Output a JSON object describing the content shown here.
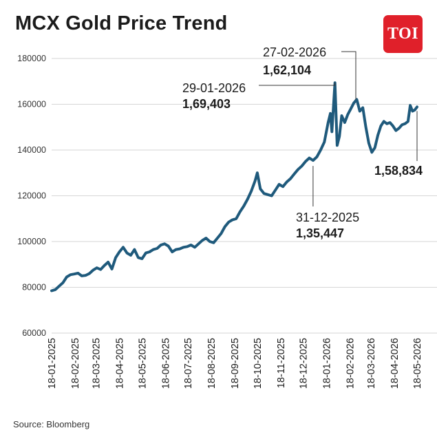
{
  "title": "MCX Gold Price Trend",
  "logo_text": "TOI",
  "source": "Source: Bloomberg",
  "colors": {
    "line": "#1f5a7c",
    "grid": "#d6d6d6",
    "logo": "#e0202a",
    "text": "#1b1b1b"
  },
  "chart_data": {
    "type": "line",
    "title": "MCX Gold Price Trend",
    "xlabel": "",
    "ylabel": "",
    "ylim": [
      60000,
      180000
    ],
    "yticks": [
      180000,
      160000,
      140000,
      120000,
      100000,
      80000,
      60000
    ],
    "ytick_labels": [
      "180000",
      "160000",
      "140000",
      "120000",
      "100000",
      "80000",
      "60000"
    ],
    "xticks": [
      "18-01-2025",
      "18-02-2025",
      "18-03-2025",
      "18-04-2025",
      "18-05-2025",
      "18-06-2025",
      "18-07-2025",
      "18-08-2025",
      "18-09-2025",
      "18-10-2025",
      "18-11-2025",
      "18-12-2025",
      "18-01-2026",
      "18-02-2026",
      "18-03-2026",
      "18-04-2026",
      "18-05-2026"
    ],
    "grid": "horizontal",
    "series": [
      {
        "points": [
          [
            "2025-01-18",
            78500
          ],
          [
            "2025-01-23",
            79000
          ],
          [
            "2025-01-28",
            80500
          ],
          [
            "2025-02-02",
            82000
          ],
          [
            "2025-02-07",
            84500
          ],
          [
            "2025-02-12",
            85500
          ],
          [
            "2025-02-17",
            85800
          ],
          [
            "2025-02-22",
            86200
          ],
          [
            "2025-02-27",
            85000
          ],
          [
            "2025-03-04",
            85200
          ],
          [
            "2025-03-09",
            86000
          ],
          [
            "2025-03-14",
            87500
          ],
          [
            "2025-03-19",
            88500
          ],
          [
            "2025-03-24",
            87800
          ],
          [
            "2025-03-29",
            89500
          ],
          [
            "2025-04-03",
            91000
          ],
          [
            "2025-04-08",
            88000
          ],
          [
            "2025-04-13",
            93000
          ],
          [
            "2025-04-18",
            95500
          ],
          [
            "2025-04-23",
            97500
          ],
          [
            "2025-04-28",
            95000
          ],
          [
            "2025-05-03",
            94000
          ],
          [
            "2025-05-08",
            96500
          ],
          [
            "2025-05-13",
            93000
          ],
          [
            "2025-05-18",
            92500
          ],
          [
            "2025-05-23",
            95000
          ],
          [
            "2025-05-28",
            95500
          ],
          [
            "2025-06-02",
            96500
          ],
          [
            "2025-06-07",
            97000
          ],
          [
            "2025-06-12",
            98500
          ],
          [
            "2025-06-17",
            99000
          ],
          [
            "2025-06-22",
            98000
          ],
          [
            "2025-06-27",
            95500
          ],
          [
            "2025-07-02",
            96500
          ],
          [
            "2025-07-07",
            96800
          ],
          [
            "2025-07-12",
            97500
          ],
          [
            "2025-07-17",
            97800
          ],
          [
            "2025-07-22",
            98500
          ],
          [
            "2025-07-27",
            97500
          ],
          [
            "2025-08-01",
            99000
          ],
          [
            "2025-08-06",
            100500
          ],
          [
            "2025-08-11",
            101500
          ],
          [
            "2025-08-16",
            100000
          ],
          [
            "2025-08-21",
            99500
          ],
          [
            "2025-08-26",
            101500
          ],
          [
            "2025-08-31",
            103500
          ],
          [
            "2025-09-05",
            106500
          ],
          [
            "2025-09-10",
            108500
          ],
          [
            "2025-09-15",
            109500
          ],
          [
            "2025-09-20",
            110000
          ],
          [
            "2025-09-25",
            113000
          ],
          [
            "2025-09-30",
            115500
          ],
          [
            "2025-10-05",
            118500
          ],
          [
            "2025-10-10",
            122000
          ],
          [
            "2025-10-15",
            126500
          ],
          [
            "2025-10-18",
            130000
          ],
          [
            "2025-10-22",
            123000
          ],
          [
            "2025-10-27",
            121000
          ],
          [
            "2025-11-01",
            120500
          ],
          [
            "2025-11-06",
            120000
          ],
          [
            "2025-11-11",
            122500
          ],
          [
            "2025-11-16",
            125000
          ],
          [
            "2025-11-21",
            124000
          ],
          [
            "2025-11-26",
            126000
          ],
          [
            "2025-12-01",
            127500
          ],
          [
            "2025-12-06",
            129500
          ],
          [
            "2025-12-11",
            131500
          ],
          [
            "2025-12-16",
            133000
          ],
          [
            "2025-12-21",
            135000
          ],
          [
            "2025-12-26",
            136500
          ],
          [
            "2025-12-31",
            135447
          ],
          [
            "2026-01-05",
            137000
          ],
          [
            "2026-01-10",
            140000
          ],
          [
            "2026-01-15",
            143500
          ],
          [
            "2026-01-20",
            152000
          ],
          [
            "2026-01-23",
            156000
          ],
          [
            "2026-01-25",
            148000
          ],
          [
            "2026-01-29",
            169403
          ],
          [
            "2026-02-01",
            142000
          ],
          [
            "2026-02-04",
            146000
          ],
          [
            "2026-02-07",
            155000
          ],
          [
            "2026-02-11",
            152000
          ],
          [
            "2026-02-15",
            155500
          ],
          [
            "2026-02-19",
            158000
          ],
          [
            "2026-02-23",
            160500
          ],
          [
            "2026-02-27",
            162104
          ],
          [
            "2026-03-03",
            157000
          ],
          [
            "2026-03-07",
            158500
          ],
          [
            "2026-03-11",
            150000
          ],
          [
            "2026-03-15",
            143000
          ],
          [
            "2026-03-19",
            139000
          ],
          [
            "2026-03-23",
            141000
          ],
          [
            "2026-03-27",
            146500
          ],
          [
            "2026-03-31",
            150500
          ],
          [
            "2026-04-04",
            152500
          ],
          [
            "2026-04-08",
            151500
          ],
          [
            "2026-04-12",
            152000
          ],
          [
            "2026-04-16",
            150500
          ],
          [
            "2026-04-20",
            148500
          ],
          [
            "2026-04-24",
            149500
          ],
          [
            "2026-04-28",
            151000
          ],
          [
            "2026-05-02",
            151500
          ],
          [
            "2026-05-06",
            152500
          ],
          [
            "2026-05-09",
            159500
          ],
          [
            "2026-05-12",
            157000
          ],
          [
            "2026-05-15",
            157500
          ],
          [
            "2026-05-18",
            158834
          ]
        ]
      }
    ],
    "annotations": [
      {
        "date_label": "27-02-2026",
        "value_label": "1,62,104",
        "x": "2026-02-27",
        "y": 162104
      },
      {
        "date_label": "29-01-2026",
        "value_label": "1,69,403",
        "x": "2026-01-29",
        "y": 169403
      },
      {
        "date_label": "31-12-2025",
        "value_label": "1,35,447",
        "x": "2025-12-31",
        "y": 135447
      },
      {
        "date_label": "",
        "value_label": "1,58,834",
        "x": "2026-05-18",
        "y": 158834
      }
    ]
  }
}
